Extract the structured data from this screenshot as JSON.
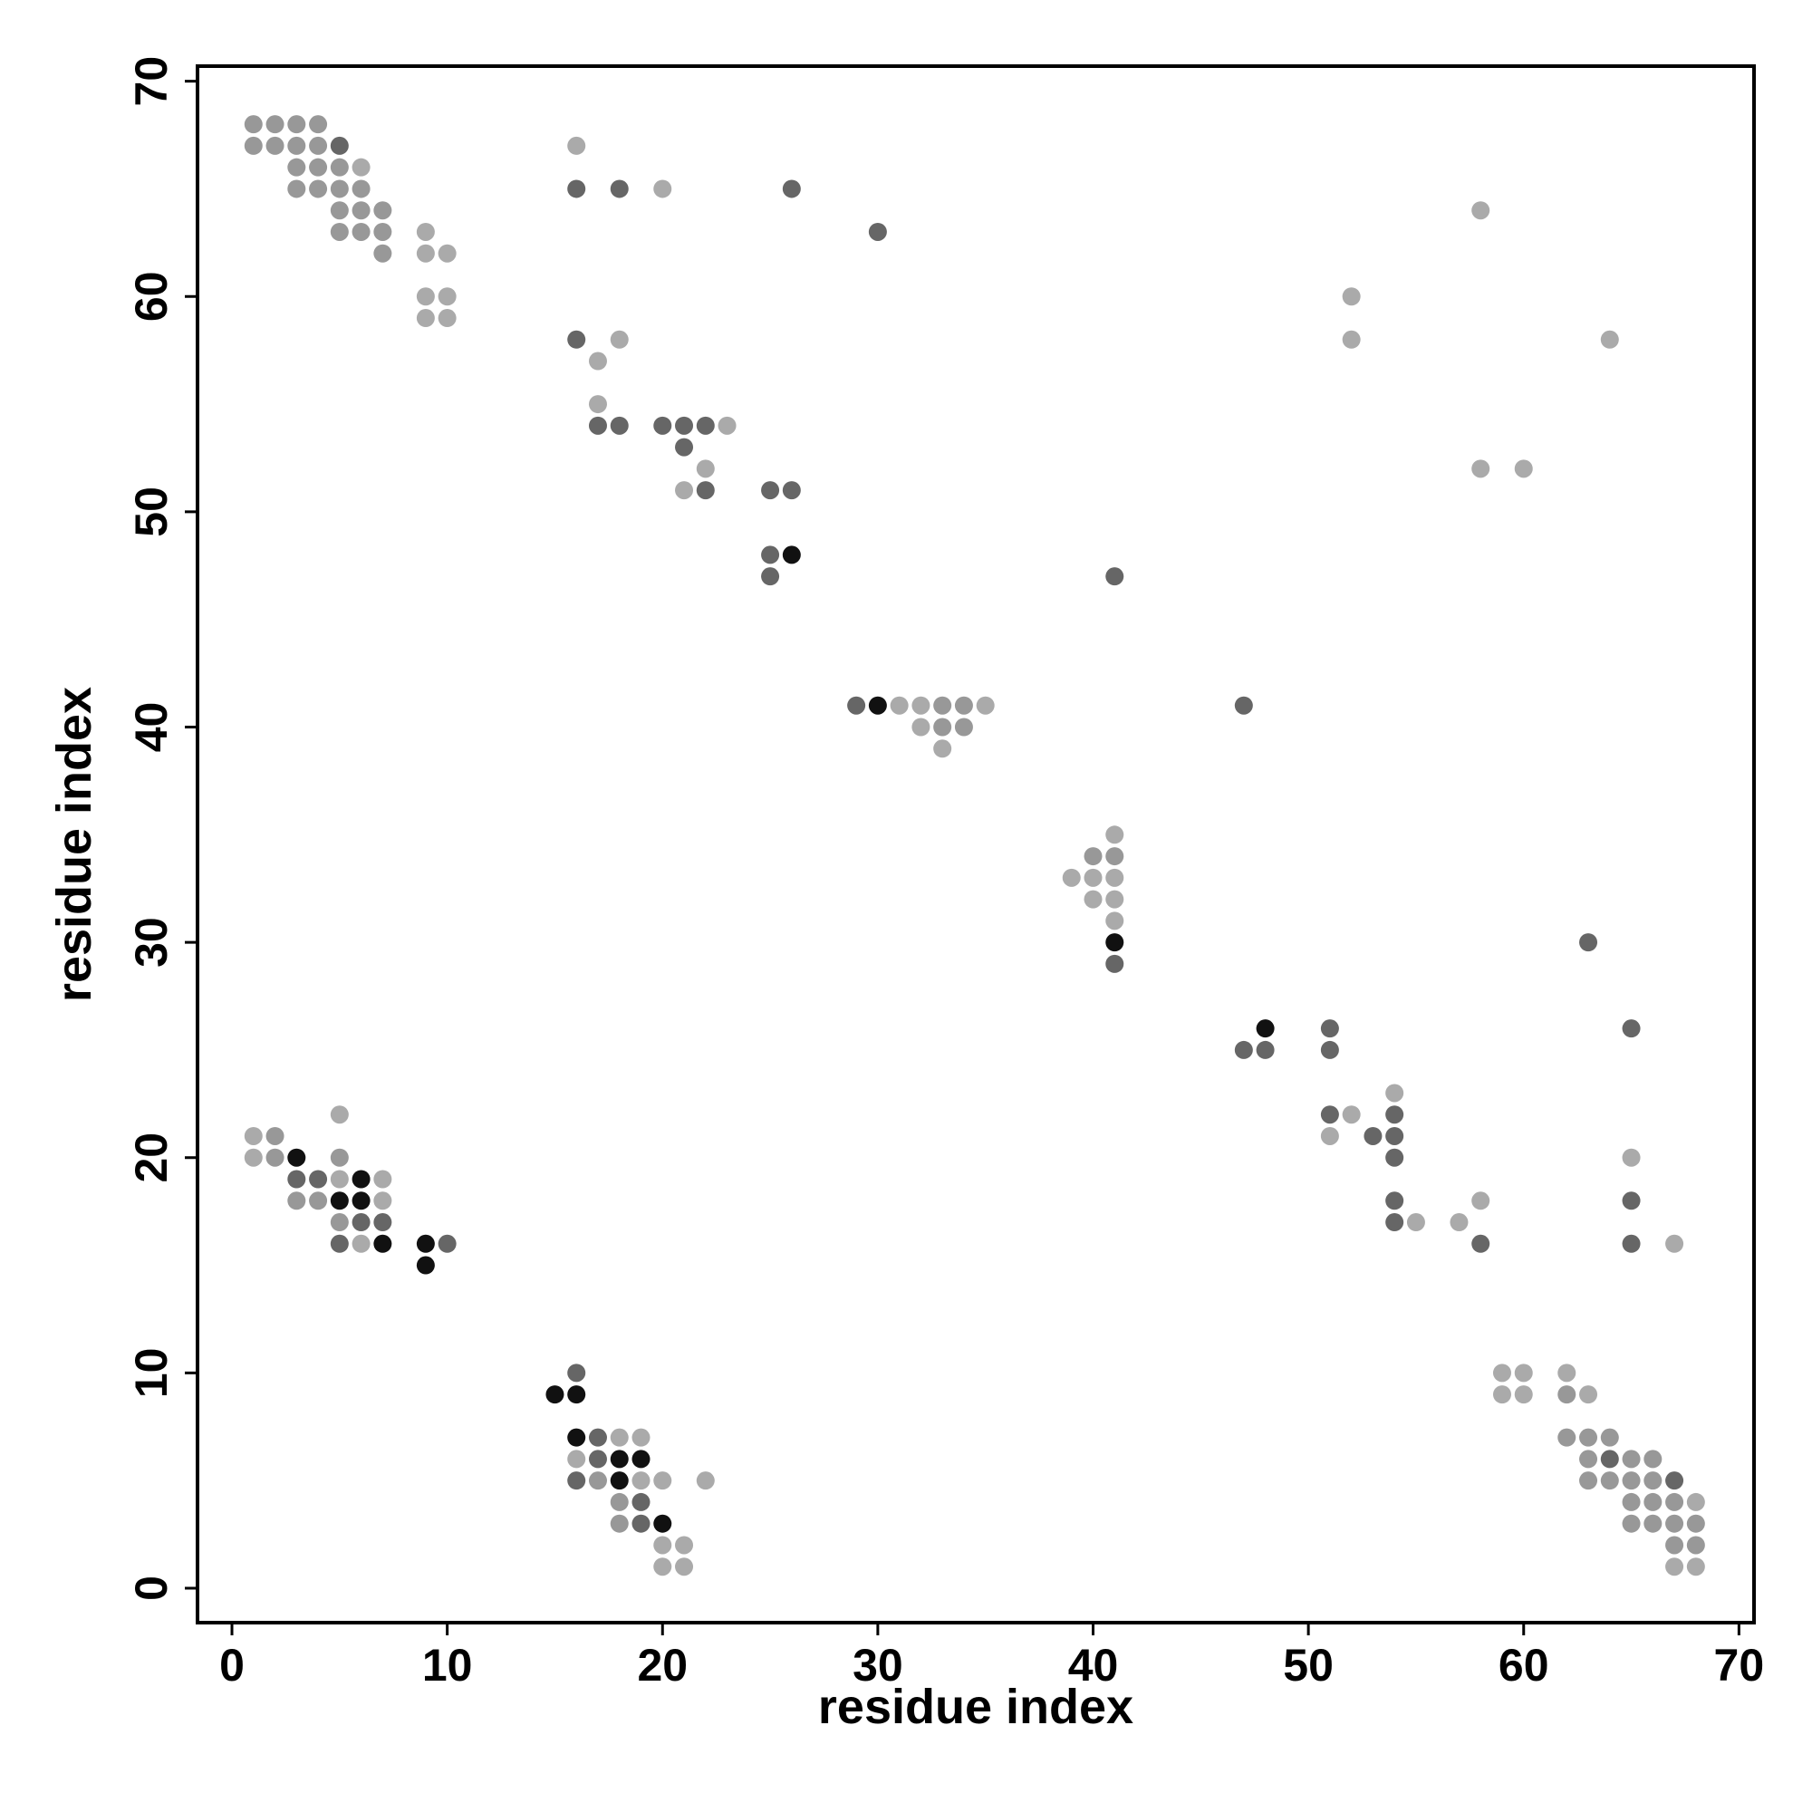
{
  "chart_data": {
    "type": "scatter",
    "xlabel": "residue index",
    "ylabel": "residue index",
    "xlim": [
      -1.6,
      70.7
    ],
    "ylim": [
      -1.6,
      70.7
    ],
    "xticks": [
      0,
      10,
      20,
      30,
      40,
      50,
      60,
      70
    ],
    "yticks": [
      0,
      10,
      20,
      30,
      40,
      50,
      60,
      70
    ],
    "series": [
      {
        "color": "#aaaaaa",
        "x": [
          6,
          9,
          9,
          10,
          9,
          10,
          9,
          10,
          16,
          20,
          18,
          17,
          17,
          23,
          22,
          21,
          31,
          32,
          35,
          32,
          33,
          41,
          39,
          40,
          41,
          40,
          41,
          41,
          54,
          5,
          52,
          1,
          51,
          1,
          65,
          5,
          7,
          7,
          58,
          55,
          57,
          6,
          67,
          58,
          52,
          52,
          64,
          58,
          60,
          59,
          60,
          62,
          59,
          60,
          63,
          18,
          19,
          16,
          19,
          20,
          22,
          68,
          20,
          21,
          20,
          21,
          67,
          68
        ],
        "y": [
          66,
          63,
          62,
          62,
          60,
          60,
          59,
          59,
          67,
          65,
          58,
          57,
          55,
          54,
          52,
          51,
          41,
          41,
          41,
          40,
          39,
          35,
          33,
          33,
          33,
          32,
          32,
          31,
          23,
          22,
          22,
          21,
          21,
          20,
          20,
          19,
          19,
          18,
          18,
          17,
          17,
          16,
          16,
          64,
          60,
          58,
          58,
          52,
          52,
          10,
          10,
          10,
          9,
          9,
          9,
          7,
          7,
          6,
          5,
          5,
          5,
          4,
          2,
          2,
          1,
          1,
          1,
          1
        ]
      },
      {
        "color": "#989898",
        "x": [
          1,
          2,
          3,
          4,
          1,
          2,
          3,
          4,
          3,
          4,
          5,
          3,
          4,
          5,
          6,
          5,
          6,
          7,
          5,
          6,
          7,
          7,
          33,
          34,
          33,
          34,
          40,
          41,
          2,
          2,
          5,
          3,
          4,
          5,
          62,
          62,
          63,
          64,
          63,
          65,
          66,
          17,
          63,
          64,
          65,
          66,
          18,
          65,
          66,
          67,
          18,
          65,
          66,
          67,
          68,
          67,
          68
        ],
        "y": [
          68,
          68,
          68,
          68,
          67,
          67,
          67,
          67,
          66,
          66,
          66,
          65,
          65,
          65,
          65,
          64,
          64,
          64,
          63,
          63,
          63,
          62,
          41,
          41,
          40,
          40,
          34,
          34,
          21,
          20,
          20,
          18,
          18,
          17,
          9,
          7,
          7,
          7,
          6,
          6,
          6,
          5,
          5,
          5,
          5,
          5,
          4,
          4,
          4,
          4,
          3,
          3,
          3,
          3,
          3,
          2,
          2
        ]
      },
      {
        "color": "#666666",
        "x": [
          5,
          16,
          18,
          26,
          30,
          16,
          17,
          18,
          20,
          21,
          22,
          21,
          22,
          25,
          26,
          25,
          25,
          41,
          29,
          47,
          63,
          41,
          51,
          65,
          47,
          48,
          51,
          51,
          54,
          53,
          54,
          54,
          3,
          4,
          54,
          65,
          6,
          7,
          54,
          5,
          10,
          58,
          65,
          16,
          17,
          17,
          64,
          16,
          67,
          19,
          19
        ],
        "y": [
          67,
          65,
          65,
          65,
          63,
          58,
          54,
          54,
          54,
          54,
          54,
          53,
          51,
          51,
          51,
          48,
          47,
          47,
          41,
          41,
          30,
          29,
          26,
          26,
          25,
          25,
          25,
          22,
          22,
          21,
          21,
          20,
          19,
          19,
          18,
          18,
          17,
          17,
          17,
          16,
          16,
          16,
          16,
          10,
          7,
          6,
          6,
          5,
          5,
          4,
          3
        ]
      },
      {
        "color": "#111111",
        "x": [
          26,
          30,
          41,
          48,
          3,
          6,
          5,
          6,
          7,
          9,
          9,
          15,
          16,
          16,
          18,
          19,
          18,
          20
        ],
        "y": [
          48,
          41,
          30,
          26,
          20,
          19,
          18,
          18,
          16,
          16,
          15,
          9,
          9,
          7,
          6,
          6,
          5,
          3
        ]
      }
    ]
  }
}
